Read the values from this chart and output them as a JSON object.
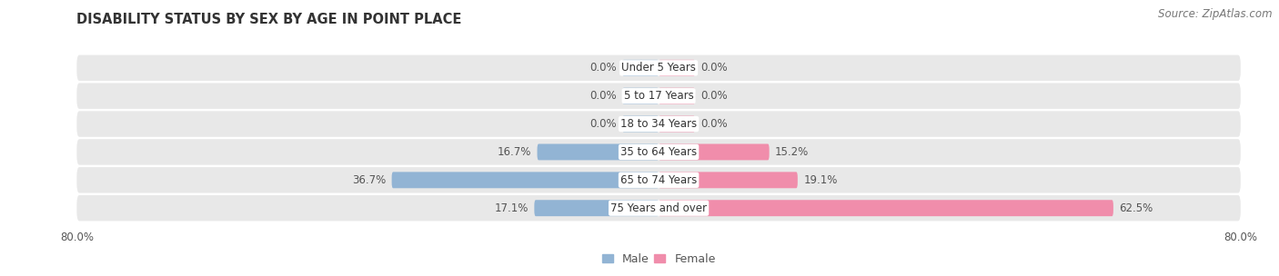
{
  "title": "DISABILITY STATUS BY SEX BY AGE IN POINT PLACE",
  "source": "Source: ZipAtlas.com",
  "categories": [
    "Under 5 Years",
    "5 to 17 Years",
    "18 to 34 Years",
    "35 to 64 Years",
    "65 to 74 Years",
    "75 Years and over"
  ],
  "male_values": [
    0.0,
    0.0,
    0.0,
    16.7,
    36.7,
    17.1
  ],
  "female_values": [
    0.0,
    0.0,
    0.0,
    15.2,
    19.1,
    62.5
  ],
  "male_color": "#92b4d4",
  "female_color": "#f08dab",
  "row_bg_color": "#e8e8e8",
  "axis_max": 80.0,
  "bar_height": 0.58,
  "label_fontsize": 8.5,
  "title_fontsize": 10.5,
  "source_fontsize": 8.5,
  "legend_fontsize": 9,
  "zero_stub": 5.0
}
